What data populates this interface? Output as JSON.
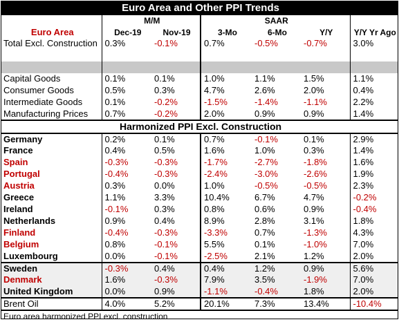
{
  "title": "Euro Area and Other PPI Trends",
  "groups": {
    "mm": "M/M",
    "saar": "SAAR"
  },
  "columns": [
    "Euro Area",
    "Dec-19",
    "Nov-19",
    "3-Mo",
    "6-Mo",
    "Y/Y",
    "Y/Y Yr Ago"
  ],
  "top_rows": [
    {
      "label": "Total Excl. Construction",
      "values": [
        "0.3%",
        "-0.1%",
        "0.7%",
        "-0.5%",
        "-0.7%",
        "3.0%"
      ]
    }
  ],
  "mid_rows": [
    {
      "label": "Capital Goods",
      "values": [
        "0.1%",
        "0.1%",
        "1.0%",
        "1.1%",
        "1.5%",
        "1.1%"
      ]
    },
    {
      "label": "Consumer Goods",
      "values": [
        "0.5%",
        "0.3%",
        "4.7%",
        "2.6%",
        "2.0%",
        "0.4%"
      ]
    },
    {
      "label": "Intermediate Goods",
      "values": [
        "0.1%",
        "-0.2%",
        "-1.5%",
        "-1.4%",
        "-1.1%",
        "2.2%"
      ]
    },
    {
      "label": "Manufacturing Prices",
      "values": [
        "0.7%",
        "-0.2%",
        "2.0%",
        "0.9%",
        "0.9%",
        "1.4%"
      ]
    }
  ],
  "section_title": "Harmonized PPI Excl. Construction",
  "countries": [
    {
      "label": "Germany",
      "red": false,
      "values": [
        "0.2%",
        "0.1%",
        "0.7%",
        "-0.1%",
        "0.1%",
        "2.9%"
      ]
    },
    {
      "label": "France",
      "red": false,
      "values": [
        "0.4%",
        "0.5%",
        "1.6%",
        "1.0%",
        "0.3%",
        "1.4%"
      ]
    },
    {
      "label": "Spain",
      "red": true,
      "values": [
        "-0.3%",
        "-0.3%",
        "-1.7%",
        "-2.7%",
        "-1.8%",
        "1.6%"
      ]
    },
    {
      "label": "Portugal",
      "red": true,
      "values": [
        "-0.4%",
        "-0.3%",
        "-2.4%",
        "-3.0%",
        "-2.6%",
        "1.9%"
      ]
    },
    {
      "label": "Austria",
      "red": true,
      "values": [
        "0.3%",
        "0.0%",
        "1.0%",
        "-0.5%",
        "-0.5%",
        "2.3%"
      ]
    },
    {
      "label": "Greece",
      "red": false,
      "values": [
        "1.1%",
        "3.3%",
        "10.4%",
        "6.7%",
        "4.7%",
        "-0.2%"
      ]
    },
    {
      "label": "Ireland",
      "red": false,
      "values": [
        "-0.1%",
        "0.3%",
        "0.8%",
        "0.6%",
        "0.9%",
        "-0.4%"
      ]
    },
    {
      "label": "Netherlands",
      "red": false,
      "values": [
        "0.9%",
        "0.4%",
        "8.9%",
        "2.8%",
        "3.1%",
        "1.8%"
      ]
    },
    {
      "label": "Finland",
      "red": true,
      "values": [
        "-0.4%",
        "-0.3%",
        "-3.3%",
        "0.7%",
        "-1.3%",
        "4.3%"
      ]
    },
    {
      "label": "Belgium",
      "red": true,
      "values": [
        "0.8%",
        "-0.1%",
        "5.5%",
        "0.1%",
        "-1.0%",
        "7.0%"
      ]
    },
    {
      "label": "Luxembourg",
      "red": false,
      "values": [
        "0.0%",
        "-0.1%",
        "-2.5%",
        "2.1%",
        "1.2%",
        "2.0%"
      ]
    }
  ],
  "others": [
    {
      "label": "Sweden",
      "red": false,
      "values": [
        "-0.3%",
        "0.4%",
        "0.4%",
        "1.2%",
        "0.9%",
        "5.6%"
      ]
    },
    {
      "label": "Denmark",
      "red": true,
      "values": [
        "1.6%",
        "-0.3%",
        "7.9%",
        "3.5%",
        "-1.9%",
        "7.0%"
      ]
    },
    {
      "label": "United Kingdom",
      "red": false,
      "values": [
        "0.0%",
        "0.9%",
        "-1.1%",
        "-0.4%",
        "1.8%",
        "2.0%"
      ]
    }
  ],
  "brent": {
    "label": "Brent Oil",
    "values": [
      "4.0%",
      "5.2%",
      "20.1%",
      "7.3%",
      "13.4%",
      "-10.4%"
    ]
  },
  "footnote": "Euro area harmonized PPI excl. construction",
  "colors": {
    "negative": "#c00000",
    "header_bg": "#000000",
    "separator": "#c8c8c8",
    "shade": "#efefef"
  }
}
